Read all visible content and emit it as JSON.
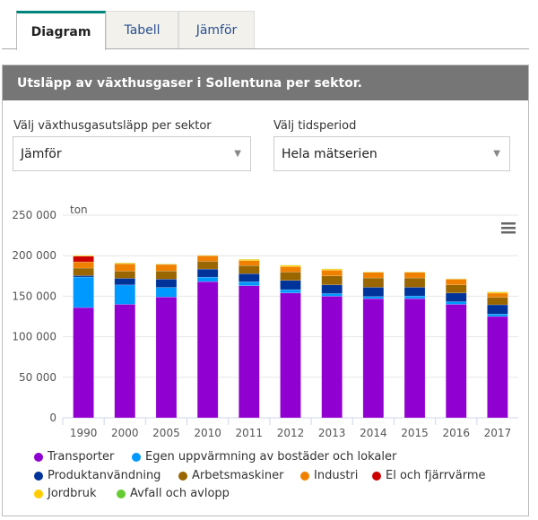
{
  "tabs": [
    {
      "label": "Diagram",
      "active": true
    },
    {
      "label": "Tabell"
    },
    {
      "label": "Jämför"
    }
  ],
  "panel": {
    "title": "Utsläpp av växthusgaser i Sollentuna per sektor."
  },
  "filters": {
    "sector": {
      "label": "Välj växthusgasutsläpp per sektor",
      "value": "Jämför"
    },
    "period": {
      "label": "Välj tidsperiod",
      "value": "Hela mätserien"
    }
  },
  "menu_icon": "hamburger-menu-icon",
  "chart_data": {
    "type": "bar",
    "stacked": true,
    "ylabel": "ton",
    "ylim": [
      0,
      250000
    ],
    "yticks": [
      "0",
      "50 000",
      "100 000",
      "150 000",
      "200 000",
      "250 000"
    ],
    "grid": true,
    "legend_position": "bottom",
    "categories": [
      "1990",
      "2000",
      "2005",
      "2010",
      "2011",
      "2012",
      "2013",
      "2014",
      "2015",
      "2016",
      "2017"
    ],
    "series": [
      {
        "name": "Transporter",
        "color": "#9000d0",
        "values": [
          136000,
          140000,
          149000,
          168000,
          163000,
          154000,
          150000,
          147000,
          147000,
          140000,
          125000
        ]
      },
      {
        "name": "Egen uppvärmning av bostäder och lokaler",
        "color": "#0099ff",
        "values": [
          37600,
          23900,
          11800,
          5500,
          4800,
          4100,
          3300,
          2600,
          3300,
          3300,
          3000
        ]
      },
      {
        "name": "Produktanvändning",
        "color": "#003399",
        "values": [
          1800,
          8200,
          10300,
          10000,
          10000,
          11400,
          10700,
          11400,
          10700,
          10700,
          11400
        ]
      },
      {
        "name": "Arbetsmaskiner",
        "color": "#996600",
        "values": [
          9300,
          8800,
          10000,
          9500,
          10000,
          10300,
          11100,
          11500,
          11500,
          10000,
          9300
        ]
      },
      {
        "name": "Industri",
        "color": "#f08000",
        "values": [
          7700,
          9200,
          8100,
          7000,
          6200,
          6600,
          7000,
          7000,
          7000,
          7000,
          5100
        ]
      },
      {
        "name": "El och fjärrvärme",
        "color": "#cc0000",
        "values": [
          7000,
          0,
          0,
          0,
          0,
          0,
          0,
          0,
          0,
          0,
          0
        ]
      },
      {
        "name": "Jordbruk",
        "color": "#ffcc00",
        "values": [
          1000,
          1000,
          500,
          500,
          1500,
          1800,
          1500,
          500,
          500,
          500,
          1500
        ]
      },
      {
        "name": "Avfall och avlopp",
        "color": "#66cc33",
        "values": [
          200,
          200,
          200,
          200,
          200,
          200,
          200,
          200,
          200,
          200,
          200
        ]
      }
    ]
  }
}
